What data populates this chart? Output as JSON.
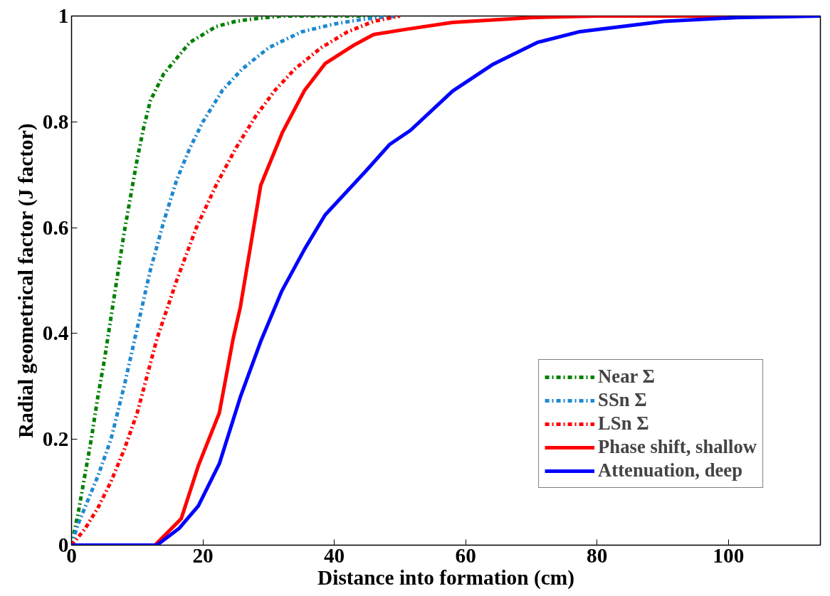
{
  "chart_data": {
    "type": "line",
    "xlabel": "Distance into formation (cm)",
    "ylabel": "Radial geometrical factor (J factor)",
    "xlim": [
      0,
      114
    ],
    "ylim": [
      0,
      1
    ],
    "xticks": [
      0,
      20,
      40,
      60,
      80,
      100
    ],
    "yticks": [
      0,
      {
        "value": 0.2,
        "label": "0.2"
      },
      {
        "value": 0.4,
        "label": "0.4"
      },
      {
        "value": 0.6,
        "label": "0.6"
      },
      {
        "value": 0.8,
        "label": "0.8"
      },
      1
    ],
    "grid": false,
    "legend": "bottom right",
    "series": [
      {
        "name": "Near Σ",
        "color": "#008000",
        "line_style": "dashdot",
        "x": [
          0,
          1,
          2,
          3,
          4,
          5,
          6,
          7,
          8,
          9,
          10,
          11,
          12,
          14,
          16,
          18,
          20,
          22,
          25,
          28,
          32,
          40,
          50
        ],
        "values": [
          0,
          0.06,
          0.13,
          0.2,
          0.28,
          0.35,
          0.43,
          0.51,
          0.59,
          0.66,
          0.73,
          0.79,
          0.84,
          0.89,
          0.92,
          0.95,
          0.965,
          0.98,
          0.99,
          0.995,
          1,
          1,
          1
        ]
      },
      {
        "name": "SSn Σ",
        "color": "#1e88d0",
        "line_style": "dashdot",
        "x": [
          0,
          1,
          2,
          4,
          6,
          8,
          10,
          12,
          14,
          16,
          18,
          20,
          23,
          26,
          30,
          35,
          40,
          45,
          50
        ],
        "values": [
          0,
          0.04,
          0.07,
          0.13,
          0.2,
          0.3,
          0.41,
          0.52,
          0.61,
          0.69,
          0.75,
          0.8,
          0.86,
          0.9,
          0.94,
          0.97,
          0.985,
          0.995,
          1
        ]
      },
      {
        "name": "LSn Σ",
        "color": "#ff0000",
        "line_style": "dashdot",
        "x": [
          0,
          2,
          4,
          6,
          8,
          10,
          13,
          16,
          19,
          22,
          25,
          28,
          31,
          34,
          38,
          42,
          46,
          50
        ],
        "values": [
          0,
          0.03,
          0.07,
          0.12,
          0.18,
          0.25,
          0.39,
          0.5,
          0.6,
          0.68,
          0.75,
          0.81,
          0.86,
          0.9,
          0.94,
          0.97,
          0.99,
          1
        ]
      },
      {
        "name": "Phase shift, shallow",
        "color": "#ff0000",
        "line_style": "solid",
        "x": [
          0,
          12.7,
          16.7,
          19.3,
          22.5,
          24.6,
          25.7,
          28.8,
          32.1,
          35.5,
          38.6,
          43,
          46,
          51,
          58,
          70,
          80,
          100
        ],
        "values": [
          0,
          0,
          0.05,
          0.15,
          0.25,
          0.39,
          0.45,
          0.68,
          0.78,
          0.86,
          0.91,
          0.945,
          0.965,
          0.975,
          0.988,
          0.997,
          1,
          1
        ]
      },
      {
        "name": "Attenuation, deep",
        "color": "#0000ff",
        "line_style": "solid",
        "x": [
          0,
          13,
          16.4,
          19.3,
          22.5,
          25.7,
          28.8,
          32,
          35.5,
          38.6,
          44.8,
          48.4,
          51.6,
          58,
          64.2,
          70.9,
          77.2,
          90.2,
          101.2,
          114
        ],
        "values": [
          0,
          0,
          0.032,
          0.074,
          0.154,
          0.28,
          0.385,
          0.48,
          0.56,
          0.624,
          0.707,
          0.757,
          0.784,
          0.858,
          0.909,
          0.95,
          0.97,
          0.99,
          0.997,
          1
        ]
      }
    ]
  }
}
